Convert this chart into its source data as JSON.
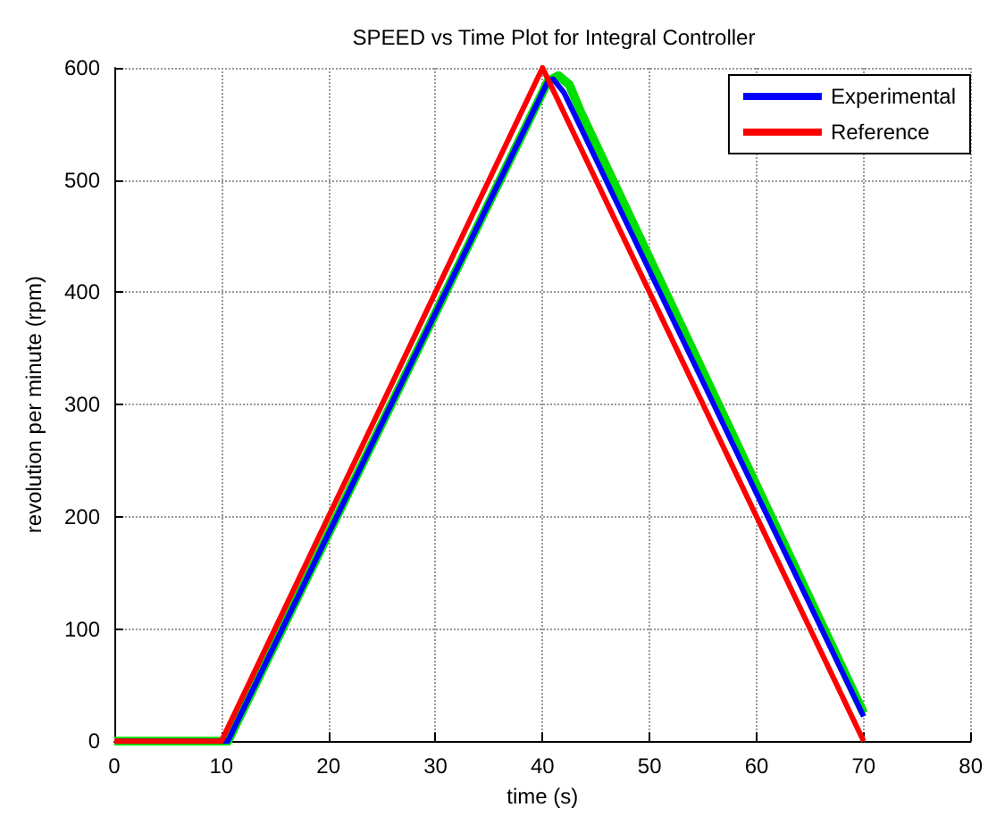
{
  "chart_data": {
    "type": "line",
    "title": "SPEED vs Time Plot for Integral Controller",
    "xlabel": "time (s)",
    "ylabel": "revolution per minute (rpm)",
    "xlim": [
      0,
      80
    ],
    "xticks": [
      0,
      10,
      20,
      30,
      40,
      50,
      60,
      70,
      80
    ],
    "ylim": [
      0,
      600
    ],
    "yticks": [
      0,
      100,
      200,
      300,
      400,
      500,
      600
    ],
    "grid": true,
    "legend": "top right",
    "marker": "none",
    "line_style": "solid",
    "series": [
      {
        "color": "#00e000",
        "x": [
          0,
          10.6,
          40.5,
          41.5,
          42.5,
          43.5,
          70
        ],
        "values": [
          0,
          0,
          588,
          593,
          585,
          562,
          25
        ]
      },
      {
        "name": "Experimental",
        "color": "#0000ff",
        "x": [
          0,
          10.6,
          40.5,
          41,
          42,
          70
        ],
        "values": [
          0,
          0,
          588,
          590,
          578,
          22
        ]
      },
      {
        "name": "Reference",
        "color": "#ff0000",
        "x": [
          0,
          10,
          40,
          70
        ],
        "values": [
          0,
          0,
          600,
          0
        ]
      }
    ]
  }
}
